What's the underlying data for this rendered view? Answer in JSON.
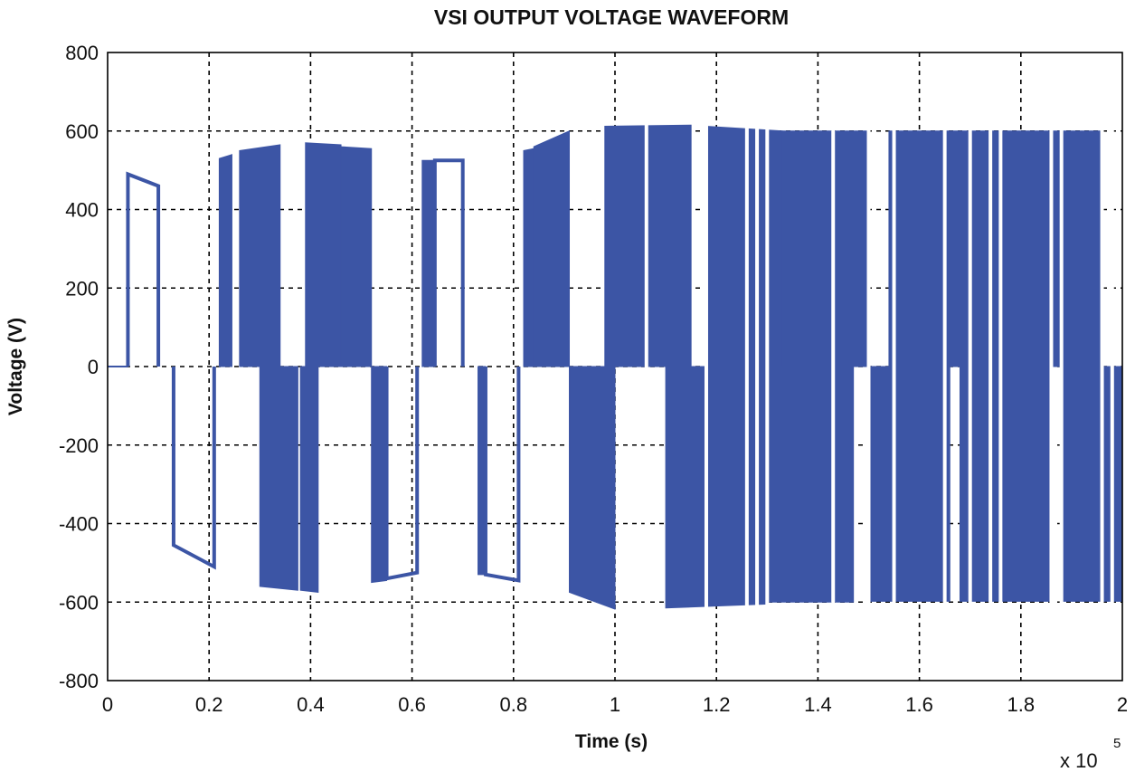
{
  "chart_data": {
    "type": "line",
    "title": "VSI OUTPUT VOLTAGE WAVEFORM",
    "xlabel": "Time (s)",
    "ylabel": "Voltage (V)",
    "x_multiplier_base": "x 10",
    "x_multiplier_exp": "5",
    "xlim": [
      0,
      2
    ],
    "ylim": [
      -800,
      800
    ],
    "xticks": [
      0,
      0.2,
      0.4,
      0.6,
      0.8,
      1,
      1.2,
      1.4,
      1.6,
      1.8,
      2
    ],
    "xtick_labels": [
      "0",
      "0.2",
      "0.4",
      "0.6",
      "0.8",
      "1",
      "1.2",
      "1.4",
      "1.6",
      "1.8",
      "2"
    ],
    "yticks": [
      -800,
      -600,
      -400,
      -200,
      0,
      200,
      400,
      600,
      800
    ],
    "ytick_labels": [
      "-800",
      "-600",
      "-400",
      "-200",
      "0",
      "200",
      "400",
      "600",
      "800"
    ],
    "grid": true,
    "grid_style": "dashed",
    "series": [
      {
        "name": "VSI output voltage",
        "color": "#3c55a5",
        "pulses": [
          {
            "x": [
              0.04,
              0.1
            ],
            "polarity": 1,
            "level": [
              490,
              460
            ],
            "dense": false
          },
          {
            "x": [
              0.13,
              0.21
            ],
            "polarity": -1,
            "level": [
              455,
              510
            ],
            "dense": false
          },
          {
            "x": [
              0.22,
              0.245
            ],
            "polarity": 1,
            "level": [
              530,
              540
            ],
            "dense": true
          },
          {
            "x": [
              0.26,
              0.34
            ],
            "polarity": 1,
            "level": [
              550,
              565
            ],
            "dense": true
          },
          {
            "x": [
              0.3,
              0.375
            ],
            "polarity": -1,
            "level": [
              560,
              570
            ],
            "dense": true
          },
          {
            "x": [
              0.38,
              0.415
            ],
            "polarity": -1,
            "level": [
              570,
              575
            ],
            "dense": true
          },
          {
            "x": [
              0.39,
              0.46
            ],
            "polarity": 1,
            "level": [
              570,
              565
            ],
            "dense": true
          },
          {
            "x": [
              0.46,
              0.52
            ],
            "polarity": 1,
            "level": [
              560,
              555
            ],
            "dense": true
          },
          {
            "x": [
              0.52,
              0.55
            ],
            "polarity": -1,
            "level": [
              550,
              545
            ],
            "dense": true
          },
          {
            "x": [
              0.55,
              0.61
            ],
            "polarity": -1,
            "level": [
              540,
              525
            ],
            "dense": false
          },
          {
            "x": [
              0.62,
              0.645
            ],
            "polarity": 1,
            "level": [
              525,
              525
            ],
            "dense": true
          },
          {
            "x": [
              0.645,
              0.7
            ],
            "polarity": 1,
            "level": [
              525,
              525
            ],
            "dense": false
          },
          {
            "x": [
              0.73,
              0.745
            ],
            "polarity": -1,
            "level": [
              530,
              530
            ],
            "dense": true
          },
          {
            "x": [
              0.745,
              0.81
            ],
            "polarity": -1,
            "level": [
              530,
              545
            ],
            "dense": false
          },
          {
            "x": [
              0.82,
              0.84
            ],
            "polarity": 1,
            "level": [
              550,
              555
            ],
            "dense": true
          },
          {
            "x": [
              0.84,
              0.91
            ],
            "polarity": 1,
            "level": [
              560,
              600
            ],
            "dense": true
          },
          {
            "x": [
              0.91,
              1.0
            ],
            "polarity": -1,
            "level": [
              575,
              618
            ],
            "dense": true
          },
          {
            "x": [
              0.98,
              1.15
            ],
            "polarity": 1,
            "level": [
              612,
              615
            ],
            "dense": true
          },
          {
            "x": [
              1.1,
              1.3
            ],
            "polarity": -1,
            "level": [
              615,
              605
            ],
            "dense": true
          },
          {
            "x": [
              1.18,
              1.33
            ],
            "polarity": 1,
            "level": [
              612,
              600
            ],
            "dense": true
          },
          {
            "x": [
              1.33,
              1.5
            ],
            "polarity": 1,
            "level": [
              600,
              600
            ],
            "dense": true
          },
          {
            "x": [
              1.3,
              1.47
            ],
            "polarity": -1,
            "level": [
              600,
              600
            ],
            "dense": true
          },
          {
            "x": [
              1.5,
              1.66
            ],
            "polarity": -1,
            "level": [
              598,
              598
            ],
            "dense": true
          },
          {
            "x": [
              1.54,
              1.74
            ],
            "polarity": 1,
            "level": [
              600,
              600
            ],
            "dense": true
          },
          {
            "x": [
              1.68,
              1.86
            ],
            "polarity": -1,
            "level": [
              598,
              598
            ],
            "dense": true
          },
          {
            "x": [
              1.74,
              1.96
            ],
            "polarity": 1,
            "level": [
              600,
              600
            ],
            "dense": true
          },
          {
            "x": [
              1.88,
              2.0
            ],
            "polarity": -1,
            "level": [
              598,
              598
            ],
            "dense": true
          }
        ],
        "gaps": [
          1.062,
          1.18,
          1.26,
          1.28,
          1.3,
          1.43,
          1.5,
          1.55,
          1.65,
          1.7,
          1.74,
          1.76,
          1.86,
          1.88,
          1.96,
          1.98
        ]
      }
    ]
  }
}
